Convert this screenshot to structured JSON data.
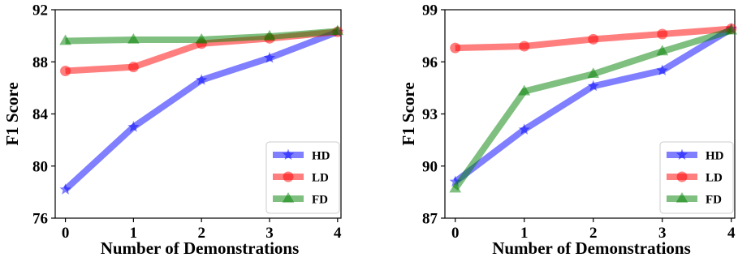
{
  "chart_data": [
    {
      "type": "line",
      "xlabel": "Number of Demonstrations",
      "ylabel": "F1 Score",
      "x": [
        0,
        1,
        2,
        3,
        4
      ],
      "xlim": [
        -0.15,
        4.05
      ],
      "ylim": [
        76,
        92
      ],
      "yticks": [
        76,
        80,
        84,
        88,
        92
      ],
      "grid": false,
      "legend_position": "bottom-right",
      "series": [
        {
          "name": "HD",
          "color": "#0000ff",
          "marker": "star",
          "values": [
            78.2,
            83.0,
            86.6,
            88.3,
            90.3
          ]
        },
        {
          "name": "LD",
          "color": "#ff0000",
          "marker": "circle",
          "values": [
            87.3,
            87.6,
            89.4,
            89.8,
            90.3
          ]
        },
        {
          "name": "FD",
          "color": "#008000",
          "marker": "triangle",
          "values": [
            89.6,
            89.7,
            89.7,
            89.95,
            90.35
          ]
        }
      ]
    },
    {
      "type": "line",
      "xlabel": "Number of Demonstrations",
      "ylabel": "F1 Score",
      "x": [
        0,
        1,
        2,
        3,
        4
      ],
      "xlim": [
        -0.15,
        4.05
      ],
      "ylim": [
        87,
        99
      ],
      "yticks": [
        87,
        90,
        93,
        96,
        99
      ],
      "grid": false,
      "legend_position": "bottom-right",
      "series": [
        {
          "name": "HD",
          "color": "#0000ff",
          "marker": "star",
          "values": [
            89.1,
            92.1,
            94.6,
            95.5,
            97.9
          ]
        },
        {
          "name": "LD",
          "color": "#ff0000",
          "marker": "circle",
          "values": [
            96.8,
            96.9,
            97.3,
            97.6,
            97.9
          ]
        },
        {
          "name": "FD",
          "color": "#008000",
          "marker": "triangle",
          "values": [
            88.7,
            94.3,
            95.3,
            96.6,
            97.8
          ]
        }
      ]
    }
  ]
}
